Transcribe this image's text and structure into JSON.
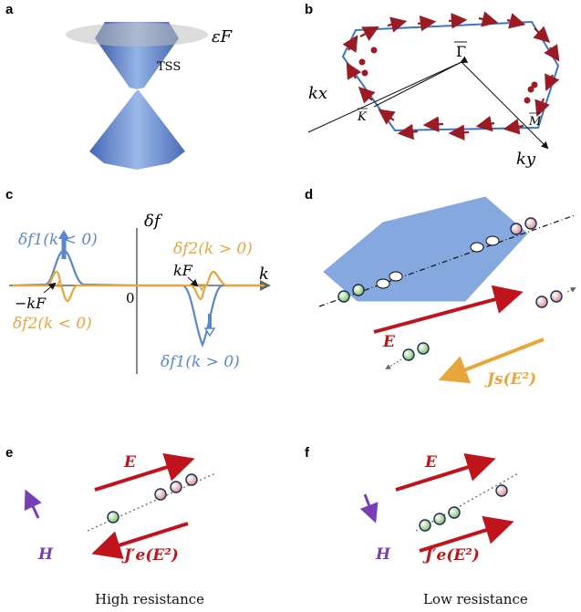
{
  "panels": {
    "a": {
      "letter": "a",
      "fermi_label": "εF",
      "state_label": "TSS"
    },
    "b": {
      "letter": "b",
      "gamma_label": "Γ",
      "kx_label": "kx",
      "ky_label": "ky",
      "K_label": "K",
      "M_label": "M"
    },
    "c": {
      "letter": "c",
      "df_label": "δf",
      "k_label": "k",
      "kF_pos_label": "kF",
      "kF_neg_label": "−kF",
      "zero_label": "0",
      "f1_neg_label": "δf1(k < 0)",
      "f2_pos_label": "δf2(k > 0)",
      "f2_neg_label": "δf2(k < 0)",
      "f1_pos_label": "δf1(k > 0)",
      "colors": {
        "f1": "#5b86c9",
        "f2": "#e8a53a"
      }
    },
    "d": {
      "letter": "d",
      "E_label": "E",
      "Js_label": "Js(E²)",
      "colors": {
        "E": "#c0141c",
        "Js": "#e8a53a",
        "plane": "#7fa4dd"
      }
    },
    "e": {
      "letter": "e",
      "E_label": "E",
      "J_label": "J′e(E²)",
      "H_label": "H",
      "caption": "High resistance",
      "colors": {
        "H": "#7b3fb5"
      }
    },
    "f": {
      "letter": "f",
      "E_label": "E",
      "J_label": "J′e(E²)",
      "H_label": "H",
      "caption": "Low resistance"
    }
  }
}
